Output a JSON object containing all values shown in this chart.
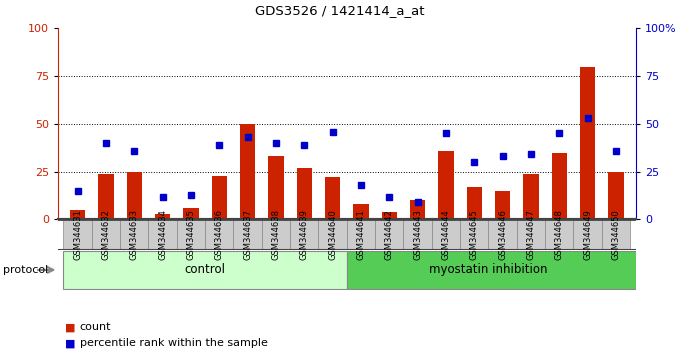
{
  "title": "GDS3526 / 1421414_a_at",
  "samples": [
    "GSM344631",
    "GSM344632",
    "GSM344633",
    "GSM344634",
    "GSM344635",
    "GSM344636",
    "GSM344637",
    "GSM344638",
    "GSM344639",
    "GSM344640",
    "GSM344641",
    "GSM344642",
    "GSM344643",
    "GSM344644",
    "GSM344645",
    "GSM344646",
    "GSM344647",
    "GSM344648",
    "GSM344649",
    "GSM344650"
  ],
  "bar_values": [
    5,
    24,
    25,
    3,
    6,
    23,
    50,
    33,
    27,
    22,
    8,
    4,
    10,
    36,
    17,
    15,
    24,
    35,
    80,
    25
  ],
  "dot_values": [
    15,
    40,
    36,
    12,
    13,
    39,
    43,
    40,
    39,
    46,
    18,
    12,
    9,
    45,
    30,
    33,
    34,
    45,
    53,
    36
  ],
  "bar_color": "#cc2200",
  "dot_color": "#0000cc",
  "control_count": 10,
  "control_label": "control",
  "treatment_label": "myostatin inhibition",
  "protocol_label": "protocol",
  "control_bg": "#ccffcc",
  "treatment_bg": "#55cc55",
  "legend_count_label": "count",
  "legend_percentile_label": "percentile rank within the sample",
  "ylim_left": [
    0,
    100
  ],
  "yticks_left": [
    0,
    25,
    50,
    75,
    100
  ],
  "ytick_labels_right": [
    "0",
    "25",
    "50",
    "75",
    "100%"
  ],
  "grid_lines": [
    25,
    50,
    75
  ],
  "plot_bg": "#ffffff",
  "tick_bg": "#cccccc",
  "separator_color": "#444444"
}
